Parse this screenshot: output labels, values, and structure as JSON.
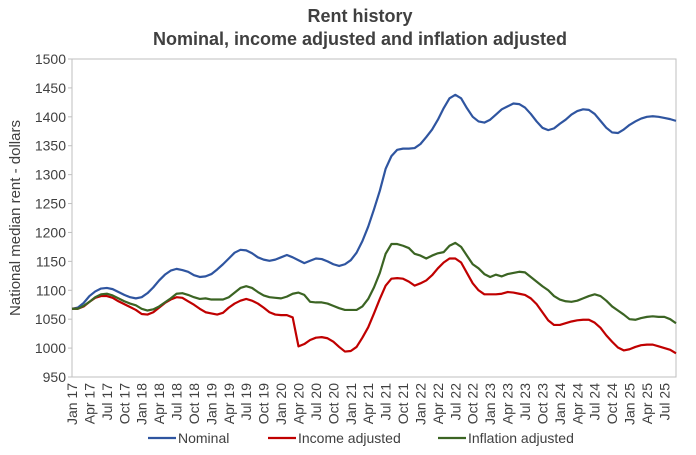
{
  "chart_data": {
    "type": "line",
    "title": "Rent history",
    "subtitle": "Nominal, income adjusted and inflation adjusted",
    "y_label": "National median rent - dollars",
    "categories": [
      "Jan 17",
      null,
      null,
      "Apr 17",
      null,
      null,
      "Jul 17",
      null,
      null,
      "Oct 17",
      null,
      null,
      "Jan 18",
      null,
      null,
      "Apr 18",
      null,
      null,
      "Jul 18",
      null,
      null,
      "Oct 18",
      null,
      null,
      "Jan 19",
      null,
      null,
      "Apr 19",
      null,
      null,
      "Jul 19",
      null,
      null,
      "Oct 19",
      null,
      null,
      "Jan 20",
      null,
      null,
      "Apr 20",
      null,
      null,
      "Jul 20",
      null,
      null,
      "Oct 20",
      null,
      null,
      "Jan 21",
      null,
      null,
      "Apr 21",
      null,
      null,
      "Jul 21",
      null,
      null,
      "Oct 21",
      null,
      null,
      "Jan 22",
      null,
      null,
      "Apr 22",
      null,
      null,
      "Jul 22",
      null,
      null,
      "Oct 22",
      null,
      null,
      "Jan 23",
      null,
      null,
      "Apr 23",
      null,
      null,
      "Jul 23",
      null,
      null,
      "Oct 23",
      null,
      null,
      "Jan 24",
      null,
      null,
      "Apr 24",
      null,
      null,
      "Jul 24",
      null,
      null,
      "Oct 24",
      null,
      null,
      "Jan 25",
      null,
      null,
      "Apr 25",
      null,
      null,
      "Jul 25",
      null,
      null
    ],
    "series": [
      {
        "name": "Nominal",
        "color": "#2f55a0",
        "values": [
          1068,
          1070,
          1078,
          1090,
          1098,
          1103,
          1104,
          1102,
          1097,
          1092,
          1088,
          1086,
          1088,
          1095,
          1105,
          1117,
          1127,
          1134,
          1137,
          1135,
          1132,
          1126,
          1123,
          1124,
          1128,
          1136,
          1145,
          1155,
          1165,
          1170,
          1169,
          1164,
          1157,
          1153,
          1151,
          1153,
          1157,
          1161,
          1157,
          1152,
          1147,
          1151,
          1155,
          1154,
          1150,
          1145,
          1142,
          1145,
          1152,
          1165,
          1185,
          1210,
          1240,
          1272,
          1310,
          1332,
          1343,
          1345,
          1345,
          1346,
          1353,
          1365,
          1378,
          1395,
          1415,
          1432,
          1438,
          1432,
          1415,
          1400,
          1392,
          1390,
          1395,
          1404,
          1413,
          1418,
          1423,
          1422,
          1416,
          1405,
          1392,
          1381,
          1377,
          1380,
          1388,
          1395,
          1404,
          1410,
          1413,
          1412,
          1405,
          1393,
          1381,
          1373,
          1372,
          1378,
          1386,
          1392,
          1397,
          1400,
          1401,
          1400,
          1398,
          1396,
          1393
        ]
      },
      {
        "name": "Income adjusted",
        "color": "#c00000",
        "values": [
          1068,
          1068,
          1072,
          1080,
          1087,
          1090,
          1090,
          1087,
          1081,
          1076,
          1071,
          1066,
          1059,
          1058,
          1062,
          1070,
          1078,
          1084,
          1088,
          1087,
          1081,
          1075,
          1068,
          1062,
          1060,
          1058,
          1061,
          1070,
          1077,
          1082,
          1085,
          1082,
          1077,
          1070,
          1062,
          1058,
          1057,
          1057,
          1053,
          1003,
          1007,
          1014,
          1018,
          1019,
          1017,
          1011,
          1002,
          994,
          995,
          1002,
          1018,
          1036,
          1060,
          1085,
          1108,
          1120,
          1121,
          1120,
          1115,
          1108,
          1112,
          1117,
          1126,
          1138,
          1148,
          1155,
          1155,
          1148,
          1130,
          1112,
          1100,
          1093,
          1093,
          1093,
          1094,
          1097,
          1096,
          1094,
          1092,
          1086,
          1076,
          1062,
          1048,
          1040,
          1040,
          1043,
          1046,
          1048,
          1049,
          1049,
          1044,
          1035,
          1022,
          1011,
          1001,
          996,
          998,
          1002,
          1005,
          1006,
          1006,
          1003,
          1000,
          997,
          991
        ]
      },
      {
        "name": "Inflation adjusted",
        "color": "#3b6423",
        "values": [
          1068,
          1068,
          1073,
          1080,
          1088,
          1093,
          1094,
          1091,
          1086,
          1081,
          1077,
          1074,
          1068,
          1065,
          1067,
          1072,
          1079,
          1086,
          1094,
          1095,
          1092,
          1088,
          1085,
          1086,
          1084,
          1084,
          1084,
          1088,
          1096,
          1104,
          1107,
          1104,
          1097,
          1091,
          1088,
          1087,
          1086,
          1089,
          1094,
          1096,
          1092,
          1080,
          1079,
          1079,
          1077,
          1073,
          1069,
          1066,
          1066,
          1066,
          1072,
          1085,
          1105,
          1130,
          1163,
          1180,
          1180,
          1177,
          1173,
          1163,
          1160,
          1155,
          1160,
          1164,
          1166,
          1177,
          1182,
          1175,
          1160,
          1145,
          1138,
          1128,
          1123,
          1127,
          1124,
          1128,
          1130,
          1132,
          1131,
          1123,
          1115,
          1107,
          1100,
          1090,
          1084,
          1081,
          1080,
          1082,
          1086,
          1090,
          1093,
          1090,
          1082,
          1072,
          1065,
          1058,
          1050,
          1049,
          1052,
          1054,
          1055,
          1054,
          1054,
          1050,
          1043
        ]
      }
    ],
    "ylim": [
      950,
      1500
    ],
    "yticks": [
      950,
      1000,
      1050,
      1100,
      1150,
      1200,
      1250,
      1300,
      1350,
      1400,
      1450,
      1500
    ],
    "grid": false,
    "legend": "bottom"
  }
}
